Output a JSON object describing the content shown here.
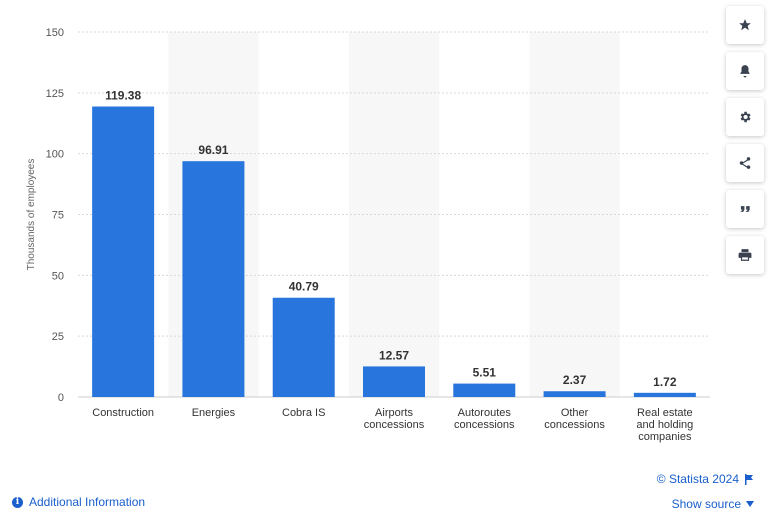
{
  "chart_data": {
    "type": "bar",
    "categories": [
      [
        "Construction"
      ],
      [
        "Energies"
      ],
      [
        "Cobra IS"
      ],
      [
        "Airports",
        "concessions"
      ],
      [
        "Autoroutes",
        "concessions"
      ],
      [
        "Other",
        "concessions"
      ],
      [
        "Real estate",
        "and holding",
        "companies"
      ]
    ],
    "values": [
      119.38,
      96.91,
      40.79,
      12.57,
      5.51,
      2.37,
      1.72
    ],
    "value_labels": [
      "119.38",
      "96.91",
      "40.79",
      "12.57",
      "5.51",
      "2.37",
      "1.72"
    ],
    "ylabel": "Thousands of employees",
    "ylim": [
      0,
      150
    ],
    "yticks": [
      0,
      25,
      50,
      75,
      100,
      125,
      150
    ],
    "bar_color": "#2876dd",
    "band_color": "#f7f7f7",
    "grid": true
  },
  "toolbar": {
    "buttons": [
      {
        "name": "favorite-button",
        "icon": "star-icon"
      },
      {
        "name": "notification-button",
        "icon": "bell-icon"
      },
      {
        "name": "settings-button",
        "icon": "gear-icon"
      },
      {
        "name": "share-button",
        "icon": "share-icon"
      },
      {
        "name": "cite-button",
        "icon": "quote-icon"
      },
      {
        "name": "print-button",
        "icon": "printer-icon"
      }
    ]
  },
  "footer": {
    "copyright": "© Statista 2024",
    "show_source": "Show source",
    "additional_info": "Additional Information"
  },
  "colors": {
    "link": "#1a5fcb"
  }
}
